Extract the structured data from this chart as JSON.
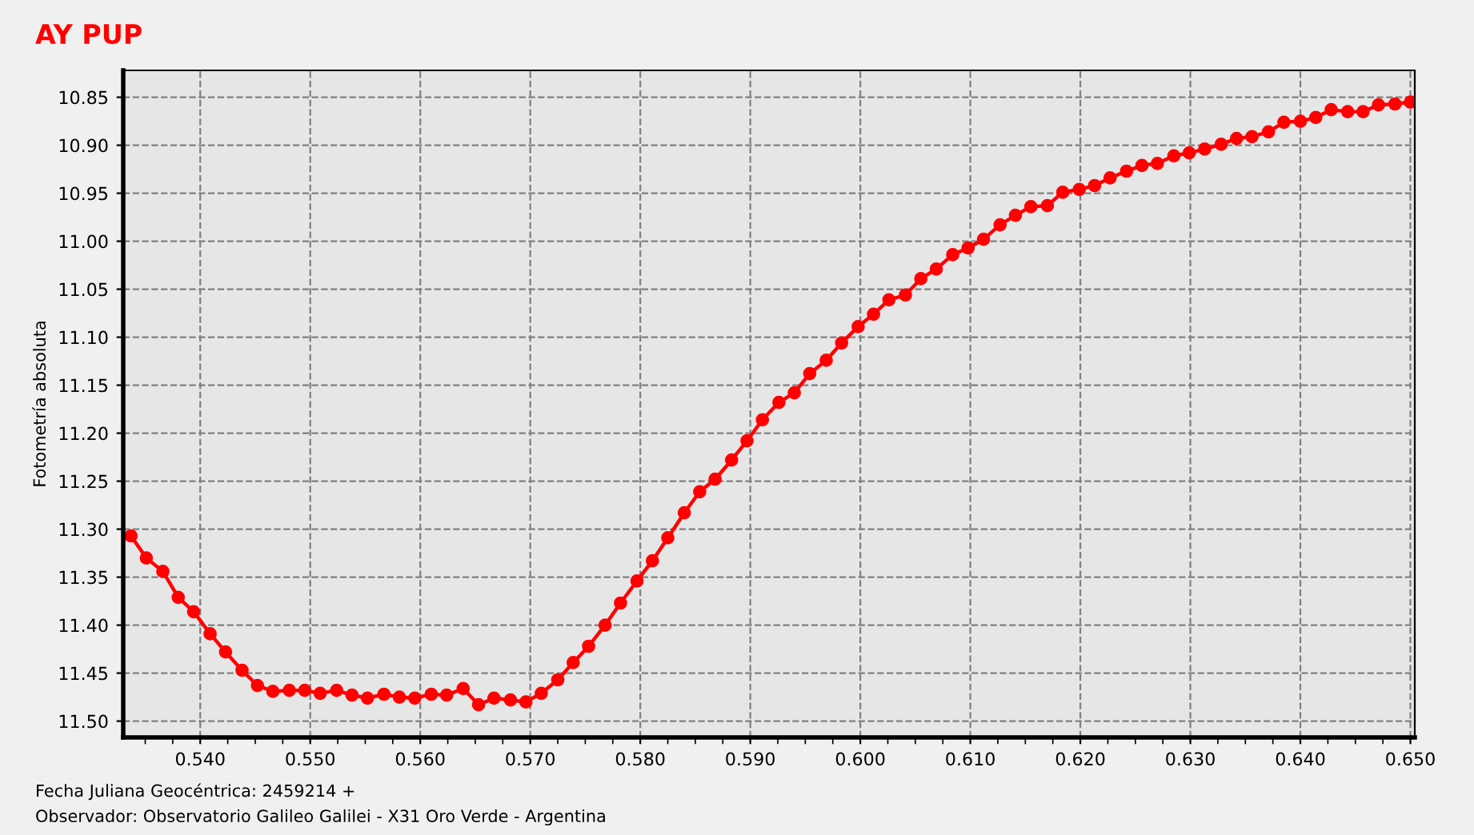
{
  "chart_data": {
    "type": "line",
    "title": "AY PUP",
    "ylabel": "Fotometría absoluta",
    "annotations": [
      "Fecha Juliana Geocéntrica: 2459214 +",
      "Observador: Observatorio Galileo Galilei - X31 Oro Verde - Argentina"
    ],
    "x": [
      0.5337,
      0.5351,
      0.5366,
      0.538,
      0.5394,
      0.5409,
      0.5423,
      0.5438,
      0.5452,
      0.5466,
      0.5481,
      0.5495,
      0.5509,
      0.5524,
      0.5538,
      0.5552,
      0.5567,
      0.5581,
      0.5595,
      0.561,
      0.5624,
      0.5639,
      0.5653,
      0.5667,
      0.5682,
      0.5696,
      0.571,
      0.5725,
      0.5739,
      0.5753,
      0.5768,
      0.5782,
      0.5797,
      0.5811,
      0.5825,
      0.584,
      0.5854,
      0.5868,
      0.5883,
      0.5897,
      0.5911,
      0.5926,
      0.594,
      0.5954,
      0.5969,
      0.5983,
      0.5998,
      0.6012,
      0.6026,
      0.6041,
      0.6055,
      0.6069,
      0.6084,
      0.6098,
      0.6112,
      0.6127,
      0.6141,
      0.6155,
      0.617,
      0.6184,
      0.6199,
      0.6213,
      0.6227,
      0.6242,
      0.6256,
      0.627,
      0.6285,
      0.6299,
      0.6313,
      0.6328,
      0.6342,
      0.6356,
      0.6371,
      0.6385,
      0.64,
      0.6414,
      0.6428,
      0.6443,
      0.6457,
      0.6471,
      0.6486,
      0.65
    ],
    "series": [
      {
        "color": "#ff0000",
        "values": [
          11.307,
          11.33,
          11.344,
          11.371,
          11.386,
          11.409,
          11.428,
          11.447,
          11.463,
          11.469,
          11.468,
          11.468,
          11.471,
          11.468,
          11.473,
          11.476,
          11.472,
          11.475,
          11.476,
          11.472,
          11.473,
          11.466,
          11.483,
          11.476,
          11.478,
          11.48,
          11.471,
          11.457,
          11.439,
          11.422,
          11.4,
          11.377,
          11.354,
          11.333,
          11.309,
          11.283,
          11.261,
          11.248,
          11.228,
          11.208,
          11.186,
          11.168,
          11.158,
          11.138,
          11.124,
          11.106,
          11.089,
          11.076,
          11.061,
          11.056,
          11.039,
          11.029,
          11.014,
          11.007,
          10.998,
          10.983,
          10.973,
          10.964,
          10.963,
          10.949,
          10.946,
          10.942,
          10.934,
          10.927,
          10.921,
          10.919,
          10.911,
          10.908,
          10.904,
          10.899,
          10.893,
          10.891,
          10.886,
          10.876,
          10.875,
          10.871,
          10.863,
          10.865,
          10.865,
          10.858,
          10.857,
          10.855
        ]
      }
    ],
    "xlim": [
      0.533,
      0.6504
    ],
    "ylim": [
      11.517,
      10.822
    ],
    "xticks": [
      {
        "value": 0.54,
        "label": "0.540"
      },
      {
        "value": 0.55,
        "label": "0.550"
      },
      {
        "value": 0.56,
        "label": "0.560"
      },
      {
        "value": 0.57,
        "label": "0.570"
      },
      {
        "value": 0.58,
        "label": "0.580"
      },
      {
        "value": 0.59,
        "label": "0.590"
      },
      {
        "value": 0.6,
        "label": "0.600"
      },
      {
        "value": 0.61,
        "label": "0.610"
      },
      {
        "value": 0.62,
        "label": "0.620"
      },
      {
        "value": 0.63,
        "label": "0.630"
      },
      {
        "value": 0.64,
        "label": "0.640"
      },
      {
        "value": 0.65,
        "label": "0.650"
      }
    ],
    "yticks": [
      10.85,
      {
        "value": 10.9,
        "label": "10.90"
      },
      10.95,
      {
        "value": 11.0,
        "label": "11.00"
      },
      11.05,
      {
        "value": 11.1,
        "label": "11.10"
      },
      11.15,
      {
        "value": 11.2,
        "label": "11.20"
      },
      11.25,
      {
        "value": 11.3,
        "label": "11.30"
      },
      11.35,
      {
        "value": 11.4,
        "label": "11.40"
      },
      11.45,
      {
        "value": 11.5,
        "label": "11.50"
      }
    ],
    "grid": true,
    "legend": false,
    "marker": "circle",
    "line_style": "solid"
  }
}
